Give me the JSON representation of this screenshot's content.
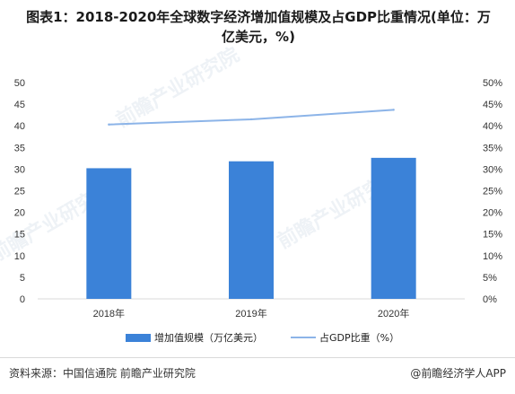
{
  "title_lines": [
    "图表1：2018-2020年全球数字经济增加值规模及占GDP比重情况(单位：万",
    "亿美元，%)"
  ],
  "source": "资料来源：中国信通院 前瞻产业研究院",
  "brand": "@前瞻经济学人APP",
  "watermark": "前瞻产业研究院",
  "colors": {
    "bar": "#3b82d8",
    "line": "#8cb4e8",
    "axis": "#d9d9d9",
    "text": "#333333"
  },
  "chart_data": {
    "type": "bar",
    "categories": [
      "2018年",
      "2019年",
      "2020年"
    ],
    "series": [
      {
        "name": "增加值规模（万亿美元）",
        "type": "bar",
        "axis": "left",
        "values": [
          30.2,
          31.8,
          32.6
        ]
      },
      {
        "name": "占GDP比重（%）",
        "type": "line",
        "axis": "right",
        "values": [
          40.3,
          41.5,
          43.7
        ]
      }
    ],
    "ylim": [
      0,
      50
    ],
    "y_ticks": [
      "0",
      "5",
      "10",
      "15",
      "20",
      "25",
      "30",
      "35",
      "40",
      "45",
      "50"
    ],
    "y2lim": [
      0,
      50
    ],
    "y2_ticks": [
      "0%",
      "5%",
      "10%",
      "15%",
      "20%",
      "25%",
      "30%",
      "35%",
      "40%",
      "45%",
      "50%"
    ],
    "grid": false,
    "legend_position": "bottom"
  }
}
